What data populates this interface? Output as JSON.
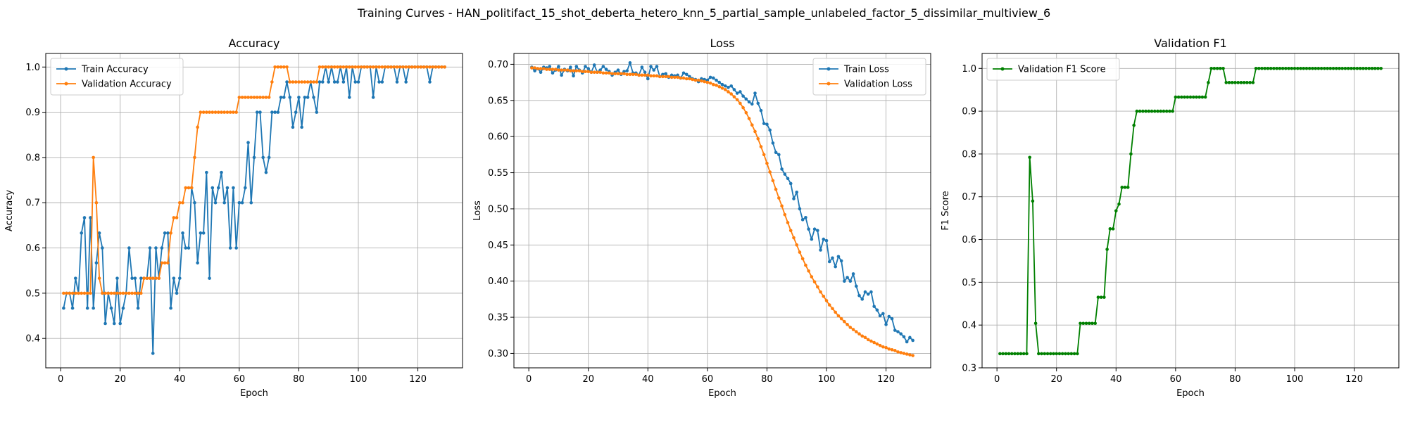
{
  "figure": {
    "suptitle": "Training Curves - HAN_politifact_15_shot_deberta_hetero_knn_5_partial_sample_unlabeled_factor_5_dissimilar_multiview_6"
  },
  "colors": {
    "train": "#1f77b4",
    "validation": "#ff7f0e",
    "f1": "#008000",
    "grid": "#b0b0b0",
    "axis": "#000000"
  },
  "chart_data": [
    {
      "type": "line",
      "title": "Accuracy",
      "xlabel": "Epoch",
      "ylabel": "Accuracy",
      "xlim": [
        -5,
        135
      ],
      "ylim": [
        0.335,
        1.03
      ],
      "xticks": [
        0,
        20,
        40,
        60,
        80,
        100,
        120
      ],
      "yticks": [
        0.4,
        0.5,
        0.6,
        0.7,
        0.8,
        0.9,
        1.0
      ],
      "ytick_labels": [
        "0.4",
        "0.5",
        "0.6",
        "0.7",
        "0.8",
        "0.9",
        "1.0"
      ],
      "grid": true,
      "legend_position": "upper-left",
      "x_start": 1,
      "series": [
        {
          "name": "Train Accuracy",
          "color": "#1f77b4",
          "values": [
            0.467,
            0.5,
            0.5,
            0.467,
            0.533,
            0.5,
            0.633,
            0.667,
            0.467,
            0.667,
            0.467,
            0.567,
            0.633,
            0.6,
            0.433,
            0.5,
            0.467,
            0.433,
            0.533,
            0.433,
            0.467,
            0.5,
            0.6,
            0.533,
            0.533,
            0.467,
            0.533,
            0.533,
            0.533,
            0.6,
            0.367,
            0.6,
            0.533,
            0.6,
            0.633,
            0.633,
            0.467,
            0.533,
            0.5,
            0.533,
            0.633,
            0.6,
            0.6,
            0.733,
            0.7,
            0.567,
            0.633,
            0.633,
            0.767,
            0.533,
            0.733,
            0.7,
            0.733,
            0.767,
            0.7,
            0.733,
            0.6,
            0.733,
            0.6,
            0.7,
            0.7,
            0.733,
            0.833,
            0.7,
            0.8,
            0.9,
            0.9,
            0.8,
            0.767,
            0.8,
            0.9,
            0.9,
            0.9,
            0.933,
            0.933,
            0.967,
            0.933,
            0.867,
            0.9,
            0.933,
            0.867,
            0.933,
            0.933,
            0.967,
            0.933,
            0.9,
            0.967,
            0.967,
            1.0,
            0.967,
            1.0,
            0.967,
            0.967,
            1.0,
            0.967,
            1.0,
            0.933,
            1.0,
            0.967,
            0.967,
            1.0,
            1.0,
            1.0,
            1.0,
            0.933,
            1.0,
            0.967,
            0.967,
            1.0,
            1.0,
            1.0,
            1.0,
            0.967,
            1.0,
            1.0,
            0.967,
            1.0,
            1.0,
            1.0,
            1.0,
            1.0,
            1.0,
            1.0,
            0.967,
            1.0,
            1.0,
            1.0,
            1.0,
            1.0
          ]
        },
        {
          "name": "Validation Accuracy",
          "color": "#ff7f0e",
          "values": [
            0.5,
            0.5,
            0.5,
            0.5,
            0.5,
            0.5,
            0.5,
            0.5,
            0.5,
            0.5,
            0.8,
            0.7,
            0.533,
            0.5,
            0.5,
            0.5,
            0.5,
            0.5,
            0.5,
            0.5,
            0.5,
            0.5,
            0.5,
            0.5,
            0.5,
            0.5,
            0.5,
            0.533,
            0.533,
            0.533,
            0.533,
            0.533,
            0.533,
            0.567,
            0.567,
            0.567,
            0.633,
            0.667,
            0.667,
            0.7,
            0.7,
            0.733,
            0.733,
            0.733,
            0.8,
            0.867,
            0.9,
            0.9,
            0.9,
            0.9,
            0.9,
            0.9,
            0.9,
            0.9,
            0.9,
            0.9,
            0.9,
            0.9,
            0.9,
            0.933,
            0.933,
            0.933,
            0.933,
            0.933,
            0.933,
            0.933,
            0.933,
            0.933,
            0.933,
            0.933,
            0.967,
            1.0,
            1.0,
            1.0,
            1.0,
            1.0,
            0.967,
            0.967,
            0.967,
            0.967,
            0.967,
            0.967,
            0.967,
            0.967,
            0.967,
            0.967,
            1.0,
            1.0,
            1.0,
            1.0,
            1.0,
            1.0,
            1.0,
            1.0,
            1.0,
            1.0,
            1.0,
            1.0,
            1.0,
            1.0,
            1.0,
            1.0,
            1.0,
            1.0,
            1.0,
            1.0,
            1.0,
            1.0,
            1.0,
            1.0,
            1.0,
            1.0,
            1.0,
            1.0,
            1.0,
            1.0,
            1.0,
            1.0,
            1.0,
            1.0,
            1.0,
            1.0,
            1.0,
            1.0,
            1.0,
            1.0,
            1.0,
            1.0,
            1.0
          ]
        }
      ]
    },
    {
      "type": "line",
      "title": "Loss",
      "xlabel": "Epoch",
      "ylabel": "Loss",
      "xlim": [
        -5,
        135
      ],
      "ylim": [
        0.28,
        0.715
      ],
      "xticks": [
        0,
        20,
        40,
        60,
        80,
        100,
        120
      ],
      "yticks": [
        0.3,
        0.35,
        0.4,
        0.45,
        0.5,
        0.55,
        0.6,
        0.65,
        0.7
      ],
      "ytick_labels": [
        "0.30",
        "0.35",
        "0.40",
        "0.45",
        "0.50",
        "0.55",
        "0.60",
        "0.65",
        "0.70"
      ],
      "grid": true,
      "legend_position": "upper-right",
      "x_start": 1,
      "series": [
        {
          "name": "Train Loss",
          "color": "#1f77b4",
          "values": [
            0.696,
            0.691,
            0.694,
            0.689,
            0.696,
            0.695,
            0.697,
            0.688,
            0.692,
            0.697,
            0.685,
            0.693,
            0.691,
            0.696,
            0.684,
            0.697,
            0.692,
            0.688,
            0.697,
            0.694,
            0.689,
            0.699,
            0.689,
            0.692,
            0.697,
            0.693,
            0.69,
            0.685,
            0.689,
            0.692,
            0.686,
            0.69,
            0.691,
            0.702,
            0.688,
            0.688,
            0.685,
            0.696,
            0.689,
            0.68,
            0.697,
            0.692,
            0.697,
            0.683,
            0.686,
            0.687,
            0.682,
            0.685,
            0.684,
            0.685,
            0.681,
            0.688,
            0.686,
            0.683,
            0.68,
            0.679,
            0.676,
            0.68,
            0.679,
            0.678,
            0.682,
            0.681,
            0.678,
            0.675,
            0.672,
            0.67,
            0.668,
            0.67,
            0.665,
            0.66,
            0.662,
            0.656,
            0.652,
            0.648,
            0.645,
            0.66,
            0.646,
            0.636,
            0.618,
            0.617,
            0.609,
            0.591,
            0.578,
            0.575,
            0.555,
            0.548,
            0.542,
            0.535,
            0.514,
            0.523,
            0.5,
            0.485,
            0.488,
            0.472,
            0.458,
            0.472,
            0.47,
            0.443,
            0.458,
            0.456,
            0.427,
            0.432,
            0.42,
            0.434,
            0.428,
            0.4,
            0.405,
            0.4,
            0.41,
            0.393,
            0.38,
            0.375,
            0.385,
            0.382,
            0.385,
            0.365,
            0.36,
            0.352,
            0.355,
            0.34,
            0.351,
            0.348,
            0.332,
            0.33,
            0.327,
            0.323,
            0.316,
            0.322,
            0.318
          ]
        },
        {
          "name": "Validation Loss",
          "color": "#ff7f0e",
          "values": [
            0.695,
            0.695,
            0.694,
            0.694,
            0.694,
            0.693,
            0.693,
            0.693,
            0.693,
            0.692,
            0.692,
            0.692,
            0.692,
            0.691,
            0.691,
            0.691,
            0.691,
            0.69,
            0.69,
            0.69,
            0.689,
            0.689,
            0.689,
            0.689,
            0.688,
            0.688,
            0.688,
            0.687,
            0.687,
            0.687,
            0.687,
            0.687,
            0.686,
            0.686,
            0.686,
            0.686,
            0.685,
            0.685,
            0.685,
            0.685,
            0.684,
            0.684,
            0.684,
            0.683,
            0.683,
            0.683,
            0.683,
            0.682,
            0.682,
            0.682,
            0.681,
            0.681,
            0.68,
            0.68,
            0.679,
            0.678,
            0.678,
            0.677,
            0.676,
            0.675,
            0.674,
            0.672,
            0.671,
            0.669,
            0.667,
            0.665,
            0.662,
            0.659,
            0.655,
            0.651,
            0.646,
            0.64,
            0.633,
            0.625,
            0.616,
            0.607,
            0.597,
            0.586,
            0.575,
            0.563,
            0.551,
            0.539,
            0.527,
            0.515,
            0.504,
            0.492,
            0.481,
            0.47,
            0.46,
            0.45,
            0.44,
            0.431,
            0.422,
            0.414,
            0.406,
            0.399,
            0.392,
            0.385,
            0.379,
            0.373,
            0.367,
            0.362,
            0.357,
            0.352,
            0.348,
            0.344,
            0.34,
            0.336,
            0.333,
            0.33,
            0.327,
            0.324,
            0.322,
            0.319,
            0.317,
            0.315,
            0.313,
            0.311,
            0.309,
            0.308,
            0.306,
            0.305,
            0.304,
            0.302,
            0.301,
            0.3,
            0.299,
            0.298,
            0.297
          ]
        }
      ]
    },
    {
      "type": "line",
      "title": "Validation F1",
      "xlabel": "Epoch",
      "ylabel": "F1 Score",
      "xlim": [
        -5,
        135
      ],
      "ylim": [
        0.3,
        1.035
      ],
      "xticks": [
        0,
        20,
        40,
        60,
        80,
        100,
        120
      ],
      "yticks": [
        0.3,
        0.4,
        0.5,
        0.6,
        0.7,
        0.8,
        0.9,
        1.0
      ],
      "ytick_labels": [
        "0.3",
        "0.4",
        "0.5",
        "0.6",
        "0.7",
        "0.8",
        "0.9",
        "1.0"
      ],
      "grid": true,
      "legend_position": "upper-left",
      "x_start": 1,
      "series": [
        {
          "name": "Validation F1 Score",
          "color": "#008000",
          "values": [
            0.333,
            0.333,
            0.333,
            0.333,
            0.333,
            0.333,
            0.333,
            0.333,
            0.333,
            0.333,
            0.792,
            0.69,
            0.404,
            0.333,
            0.333,
            0.333,
            0.333,
            0.333,
            0.333,
            0.333,
            0.333,
            0.333,
            0.333,
            0.333,
            0.333,
            0.333,
            0.333,
            0.404,
            0.404,
            0.404,
            0.404,
            0.404,
            0.404,
            0.465,
            0.465,
            0.465,
            0.577,
            0.625,
            0.625,
            0.667,
            0.683,
            0.722,
            0.722,
            0.722,
            0.8,
            0.867,
            0.9,
            0.9,
            0.9,
            0.9,
            0.9,
            0.9,
            0.9,
            0.9,
            0.9,
            0.9,
            0.9,
            0.9,
            0.9,
            0.933,
            0.933,
            0.933,
            0.933,
            0.933,
            0.933,
            0.933,
            0.933,
            0.933,
            0.933,
            0.933,
            0.967,
            1.0,
            1.0,
            1.0,
            1.0,
            1.0,
            0.967,
            0.967,
            0.967,
            0.967,
            0.967,
            0.967,
            0.967,
            0.967,
            0.967,
            0.967,
            1.0,
            1.0,
            1.0,
            1.0,
            1.0,
            1.0,
            1.0,
            1.0,
            1.0,
            1.0,
            1.0,
            1.0,
            1.0,
            1.0,
            1.0,
            1.0,
            1.0,
            1.0,
            1.0,
            1.0,
            1.0,
            1.0,
            1.0,
            1.0,
            1.0,
            1.0,
            1.0,
            1.0,
            1.0,
            1.0,
            1.0,
            1.0,
            1.0,
            1.0,
            1.0,
            1.0,
            1.0,
            1.0,
            1.0,
            1.0,
            1.0,
            1.0,
            1.0
          ]
        }
      ]
    }
  ]
}
